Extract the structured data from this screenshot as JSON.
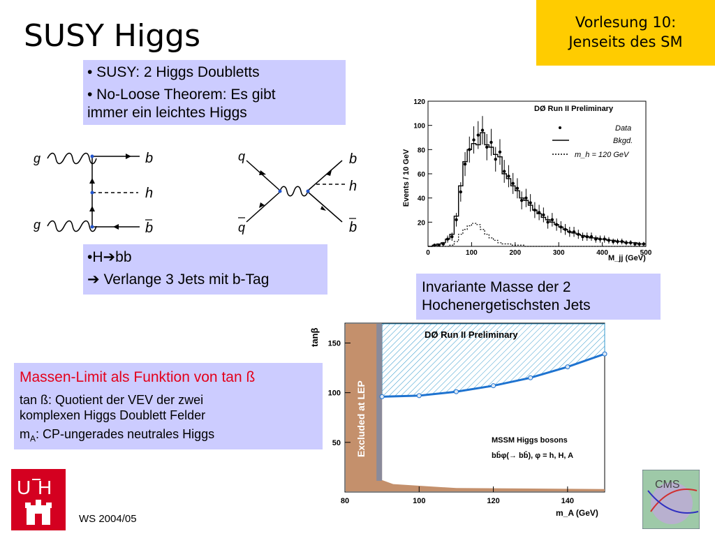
{
  "badge": {
    "line1": "Vorlesung 10:",
    "line2": "Jenseits des SM"
  },
  "title": "SUSY Higgs",
  "box1": {
    "b1": "• SUSY: 2 Higgs Doubletts",
    "b2a": "• No-Loose Theorem: Es gibt",
    "b2b": "immer ein leichtes Higgs"
  },
  "box2": {
    "l1": "•H",
    "l1b": "bb",
    "l2": " Verlange 3 Jets mit b-Tag"
  },
  "box3": {
    "l1": "Invariante Masse der 2",
    "l2": "Hochenergetischsten Jets"
  },
  "box4": {
    "head": "Massen-Limit als Funktion von tan ß",
    "l1a": "tan ß: Quotient der VEV der zwei",
    "l1b": "komplexen Higgs Doublett Felder",
    "l2a": "m",
    "l2sub": "A",
    "l2b": ": CP-ungerades neutrales Higgs"
  },
  "feyn1": {
    "g1": "g",
    "g2": "g",
    "b": "b",
    "bbar": "b",
    "h": "h"
  },
  "feyn2": {
    "q": "q",
    "qbar": "q",
    "b": "b",
    "bbar": "b",
    "h": "h"
  },
  "chart_data": [
    {
      "type": "histogram",
      "title": "DØ Run II Preliminary",
      "xlabel": "M_jj (GeV)",
      "ylabel": "Events / 10 GeV",
      "xlim": [
        0,
        500
      ],
      "ylim": [
        0,
        120
      ],
      "xticks": [
        "0",
        "100",
        "200",
        "300",
        "400",
        "500"
      ],
      "yticks": [
        "20",
        "40",
        "60",
        "80",
        "100",
        "120"
      ],
      "legend": [
        "Data",
        "Bkgd.",
        "m_h = 120 GeV"
      ],
      "x": [
        5,
        15,
        25,
        35,
        45,
        55,
        65,
        75,
        85,
        95,
        105,
        115,
        125,
        135,
        145,
        155,
        165,
        175,
        185,
        195,
        205,
        215,
        225,
        235,
        245,
        255,
        265,
        275,
        285,
        295,
        305,
        315,
        325,
        335,
        345,
        355,
        365,
        375,
        385,
        395,
        405,
        415,
        425,
        435,
        445,
        455,
        465,
        475,
        485,
        495
      ],
      "series": [
        {
          "name": "Data",
          "values": [
            0,
            1,
            1,
            2,
            6,
            8,
            22,
            45,
            68,
            80,
            88,
            92,
            96,
            82,
            86,
            72,
            78,
            62,
            58,
            52,
            48,
            38,
            40,
            36,
            30,
            28,
            26,
            20,
            22,
            18,
            16,
            14,
            12,
            12,
            10,
            8,
            8,
            8,
            6,
            6,
            6,
            5,
            4,
            4,
            4,
            3,
            3,
            2,
            2,
            2
          ]
        },
        {
          "name": "Bkgd.",
          "values": [
            0,
            1,
            2,
            3,
            6,
            10,
            25,
            50,
            70,
            80,
            85,
            84,
            94,
            84,
            82,
            76,
            74,
            60,
            56,
            50,
            46,
            40,
            38,
            34,
            30,
            27,
            24,
            22,
            20,
            18,
            16,
            14,
            12,
            11,
            10,
            9,
            8,
            7,
            7,
            6,
            6,
            5,
            5,
            4,
            4,
            3,
            3,
            3,
            2,
            2
          ]
        },
        {
          "name": "m_h = 120 GeV",
          "values": [
            0,
            0,
            0,
            0,
            0,
            1,
            4,
            10,
            14,
            17,
            19,
            18,
            14,
            10,
            7,
            5,
            3,
            2,
            2,
            1,
            1,
            1,
            0,
            0,
            0,
            0,
            0,
            0,
            0,
            0,
            0,
            0,
            0,
            0,
            0,
            0,
            0,
            0,
            0,
            0,
            0,
            0,
            0,
            0,
            0,
            0,
            0,
            0,
            0,
            0
          ]
        }
      ]
    },
    {
      "type": "line",
      "title": "DØ Run II Preliminary",
      "xlabel": "m_A (GeV)",
      "ylabel": "tanβ",
      "xlim": [
        80,
        150
      ],
      "ylim": [
        0,
        170
      ],
      "xticks": [
        "80",
        "100",
        "120",
        "140"
      ],
      "yticks": [
        "50",
        "100",
        "150"
      ],
      "annotations": [
        "Excluded at LEP",
        "MSSM Higgs bosons",
        "bb̄φ(→ bb̄), φ = h, H, A"
      ],
      "series": [
        {
          "name": "limit",
          "x": [
            90,
            100,
            110,
            120,
            130,
            140,
            150
          ],
          "values": [
            96,
            97,
            101,
            107,
            115,
            126,
            139
          ]
        }
      ]
    }
  ]
}
